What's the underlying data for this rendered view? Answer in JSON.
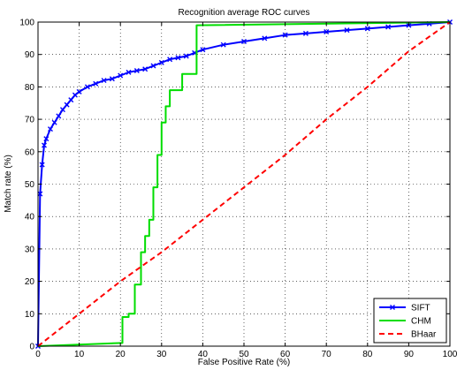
{
  "chart_data": {
    "type": "line",
    "title": "Recognition average ROC curves",
    "xlabel": "False Positive Rate (%)",
    "ylabel": "Match rate (%)",
    "xlim": [
      0,
      100
    ],
    "ylim": [
      0,
      100
    ],
    "x_ticks": [
      "0",
      "10",
      "20",
      "30",
      "40",
      "50",
      "60",
      "70",
      "80",
      "90",
      "100"
    ],
    "y_ticks": [
      "0",
      "10",
      "20",
      "30",
      "40",
      "50",
      "60",
      "70",
      "80",
      "90",
      "100"
    ],
    "grid": "dotted",
    "legend_position": "bottom-right",
    "series": [
      {
        "name": "SIFT",
        "color": "#0000ff",
        "style": "solid",
        "marker": "x",
        "x": [
          0,
          0.5,
          1,
          1.5,
          2,
          3,
          4,
          5,
          6,
          7,
          8,
          9,
          10,
          12,
          14,
          16,
          18,
          20,
          22,
          24,
          26,
          28,
          30,
          32,
          34,
          36,
          38,
          40,
          45,
          50,
          55,
          60,
          65,
          70,
          75,
          80,
          85,
          90,
          95,
          100
        ],
        "y": [
          0,
          47,
          56,
          62,
          64,
          67,
          69,
          71,
          73,
          74.5,
          76,
          77.5,
          78.5,
          80,
          81,
          82,
          82.5,
          83.5,
          84.5,
          85,
          85.5,
          86.5,
          87.5,
          88.5,
          89,
          89.5,
          90.5,
          91.5,
          93,
          94,
          95,
          96,
          96.5,
          97,
          97.5,
          98,
          98.5,
          99,
          99.5,
          100
        ]
      },
      {
        "name": "CHM",
        "color": "#00dd00",
        "style": "solid",
        "marker": "none",
        "x": [
          0,
          20.5,
          20.5,
          22,
          22,
          23.5,
          23.5,
          25,
          25,
          26,
          26,
          27,
          27,
          28,
          28,
          29,
          29,
          30,
          30,
          31,
          31,
          32,
          32,
          35,
          35,
          38.5,
          38.5,
          100
        ],
        "y": [
          0,
          1,
          9,
          9,
          10,
          10,
          19,
          19,
          29,
          29,
          34,
          34,
          39,
          39,
          49,
          49,
          59,
          59,
          69,
          69,
          74,
          74,
          79,
          79,
          84,
          84,
          99,
          100
        ]
      },
      {
        "name": "BHaar",
        "color": "#ff0000",
        "style": "dashed",
        "marker": "none",
        "x": [
          0,
          10,
          20,
          30,
          40,
          50,
          60,
          70,
          80,
          90,
          100
        ],
        "y": [
          0,
          10,
          20,
          29,
          39,
          49,
          59,
          70,
          80,
          91,
          100
        ]
      }
    ]
  }
}
